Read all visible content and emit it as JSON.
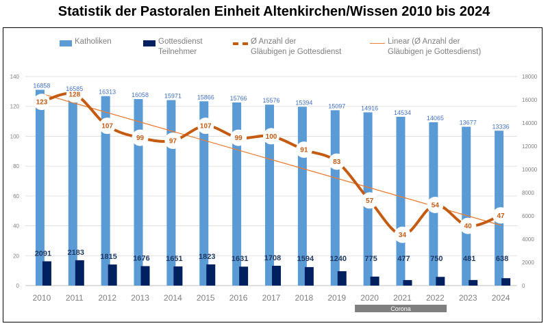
{
  "title": "Statistik der Pastoralen Einheit Altenkirchen/Wissen 2010 bis 2024",
  "legend": {
    "katholiken": "Katholiken",
    "gottesdienst_l1": "Gottesdienst",
    "gottesdienst_l2": "Teilnehmer",
    "avg_l1": "Ø Anzahl der",
    "avg_l2": "Gläubigen je Gottesdienst",
    "linear_l1": "Linear (Ø Anzahl der",
    "linear_l2": "Gläubigen je Gottesdienst)"
  },
  "annotation": "Corona",
  "colors": {
    "katholiken": "#5b9bd5",
    "gottesdienst": "#002060",
    "avg": "#c55a11",
    "linear": "#ed7d31",
    "katholiken_label": "#4472c4",
    "gottesdienst_label": "#1f3864",
    "axis_text": "#7f7f7f",
    "corona_band": "#7f7f7f"
  },
  "chart_data": {
    "type": "bar+line",
    "title": "Statistik der Pastoralen Einheit Altenkirchen/Wissen 2010 bis 2024",
    "categories": [
      "2010",
      "2011",
      "2012",
      "2013",
      "2014",
      "2015",
      "2016",
      "2017",
      "2018",
      "2019",
      "2020",
      "2021",
      "2022",
      "2023",
      "2024"
    ],
    "series": [
      {
        "name": "Katholiken",
        "type": "bar",
        "axis": "right",
        "values": [
          16858,
          16585,
          16313,
          16058,
          15971,
          15866,
          15766,
          15576,
          15394,
          15097,
          14916,
          14534,
          14065,
          13677,
          13336
        ]
      },
      {
        "name": "Gottesdienst Teilnehmer",
        "type": "bar",
        "axis": "right",
        "values": [
          2091,
          2183,
          1815,
          1676,
          1651,
          1823,
          1631,
          1708,
          1594,
          1240,
          775,
          477,
          750,
          481,
          638
        ]
      },
      {
        "name": "Ø Anzahl der Gläubigen je Gottesdienst",
        "type": "line",
        "axis": "left",
        "values": [
          123,
          128,
          107,
          99,
          97,
          107,
          99,
          100,
          91,
          83,
          57,
          34,
          54,
          40,
          47
        ]
      },
      {
        "name": "Linear (Ø Anzahl der Gläubigen je Gottesdienst)",
        "type": "trendline",
        "axis": "left"
      }
    ],
    "y_left": {
      "range": [
        0,
        140
      ],
      "ticks": [
        0,
        20,
        40,
        60,
        80,
        100,
        120,
        140
      ]
    },
    "y_right": {
      "range": [
        0,
        18000
      ],
      "ticks": [
        0,
        2000,
        4000,
        6000,
        8000,
        10000,
        12000,
        14000,
        16000,
        18000
      ]
    },
    "annotation": {
      "text": "Corona",
      "categories": [
        "2020",
        "2021",
        "2022"
      ]
    },
    "grid": true
  }
}
